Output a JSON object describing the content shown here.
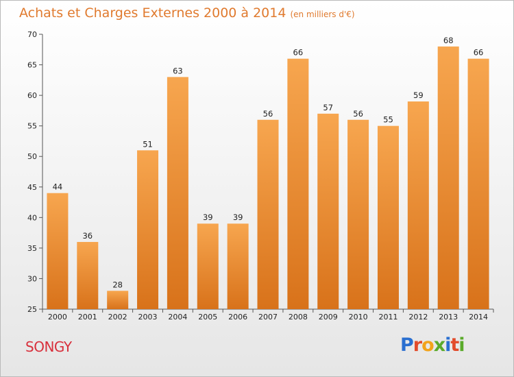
{
  "title": "Achats et Charges Externes 2000 à 2014",
  "subtitle": "(en milliers d'€)",
  "location": "SONGY",
  "logo": {
    "text": "Proxiti",
    "letter_colors": [
      "#2a6fd0",
      "#e24b2b",
      "#f2a31b",
      "#5aaa2a",
      "#2a6fd0",
      "#e24b2b",
      "#5aaa2a"
    ]
  },
  "colors": {
    "bar_light": "#f7a64f",
    "bar_dark": "#d8721a",
    "title": "#e07a2e",
    "location": "#d8303c"
  },
  "chart_data": {
    "type": "bar",
    "title": "Achats et Charges Externes 2000 à 2014",
    "subtitle": "(en milliers d'€)",
    "categories": [
      "2000",
      "2001",
      "2002",
      "2003",
      "2004",
      "2005",
      "2006",
      "2007",
      "2008",
      "2009",
      "2010",
      "2011",
      "2012",
      "2013",
      "2014"
    ],
    "values": [
      44,
      36,
      28,
      51,
      63,
      39,
      39,
      56,
      66,
      57,
      56,
      55,
      59,
      68,
      66
    ],
    "ylim": [
      25,
      70
    ],
    "yticks": [
      25,
      30,
      35,
      40,
      45,
      50,
      55,
      60,
      65,
      70
    ],
    "grid": false,
    "xlabel": "",
    "ylabel": ""
  }
}
